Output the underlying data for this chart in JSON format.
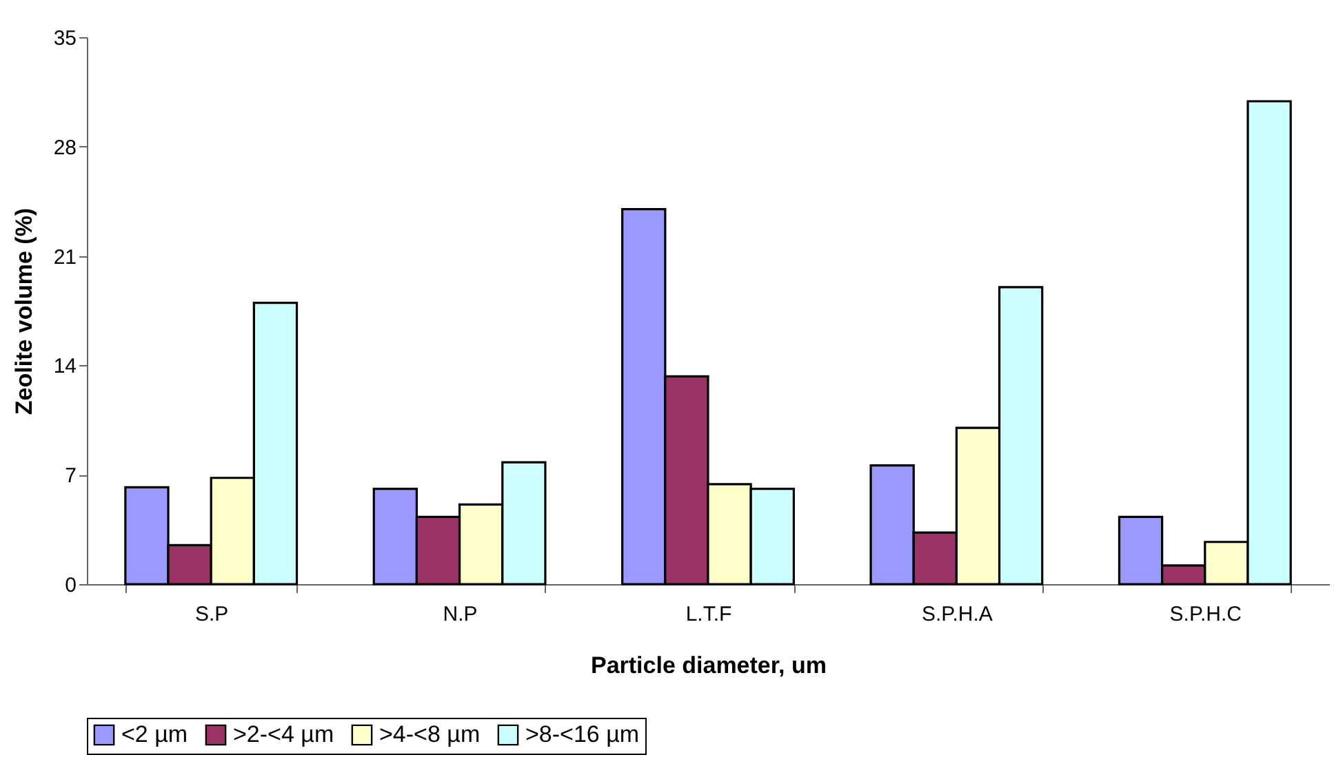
{
  "chart_data": {
    "type": "bar",
    "xlabel": "Particle diameter, um",
    "ylabel": "Zeolite volume (%)",
    "categories": [
      "S.P",
      "N.P",
      "L.T.F",
      "S.P.H.A",
      "S.P.H.C"
    ],
    "series": [
      {
        "name": "<2 µm",
        "color": "#9999ff",
        "values": [
          6.2,
          6.1,
          24.0,
          7.6,
          4.3
        ]
      },
      {
        "name": ">2-<4 µm",
        "color": "#993366",
        "values": [
          2.5,
          4.3,
          13.3,
          3.3,
          1.2
        ]
      },
      {
        "name": ">4-<8 µm",
        "color": "#ffffcc",
        "values": [
          6.8,
          5.1,
          6.4,
          10.0,
          2.7
        ]
      },
      {
        "name": ">8-<16 µm",
        "color": "#ccffff",
        "values": [
          18.0,
          7.8,
          6.1,
          19.0,
          30.9
        ]
      }
    ],
    "ylim": [
      0,
      35
    ],
    "yticks": [
      0,
      7,
      14,
      21,
      28,
      35
    ],
    "grid": false,
    "legend": "bottom"
  }
}
